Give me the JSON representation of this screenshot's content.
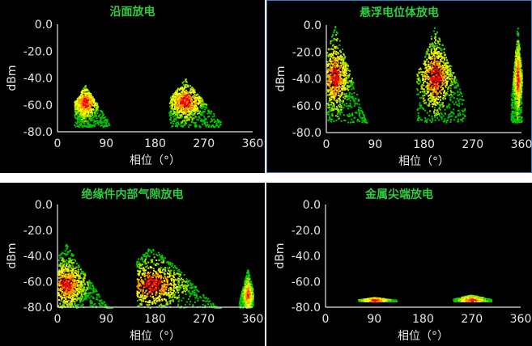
{
  "colors": {
    "background": "#000000",
    "title": "#2ecc40",
    "axis_text": "#e6e6e6",
    "low_density": "#00c800",
    "mid_low_density": "#a6e600",
    "mid_density": "#ffff00",
    "high_density": "#ff8c00",
    "peak_density": "#ff0000",
    "selected_border": "#3c78c8"
  },
  "chart_data": [
    {
      "type": "heatmap",
      "title": "沿面放电",
      "xlabel": "相位（°）",
      "ylabel": "dBm",
      "x_ticks": [
        "0",
        "90",
        "180",
        "270",
        "360"
      ],
      "y_ticks": [
        "0.0",
        "-20.0",
        "-40.0",
        "-60.0",
        "-80.0"
      ],
      "xlim": [
        0,
        360
      ],
      "ylim": [
        -80,
        0
      ],
      "grid": false,
      "clusters": [
        {
          "phase_start": 30,
          "phase_end": 95,
          "peak_phase": 50,
          "dbm_floor": -76,
          "dbm_top": -45,
          "peak_dbm": -58
        },
        {
          "phase_start": 205,
          "phase_end": 300,
          "peak_phase": 235,
          "dbm_floor": -76,
          "dbm_top": -40,
          "peak_dbm": -57
        }
      ]
    },
    {
      "type": "heatmap",
      "title": "悬浮电位体放电",
      "xlabel": "相位（°）",
      "ylabel": "dBm",
      "x_ticks": [
        "0",
        "90",
        "180",
        "270",
        "360"
      ],
      "y_ticks": [
        "0.0",
        "-20.0",
        "-40.0",
        "-60.0",
        "-80.0"
      ],
      "xlim": [
        0,
        360
      ],
      "ylim": [
        -80,
        0
      ],
      "grid": false,
      "clusters": [
        {
          "phase_start": 0,
          "phase_end": 75,
          "peak_phase": 15,
          "dbm_floor": -72,
          "dbm_top": 0,
          "peak_dbm": -38
        },
        {
          "phase_start": 165,
          "phase_end": 255,
          "peak_phase": 200,
          "dbm_floor": -72,
          "dbm_top": 0,
          "peak_dbm": -38
        },
        {
          "phase_start": 340,
          "phase_end": 360,
          "peak_phase": 352,
          "dbm_floor": -72,
          "dbm_top": 0,
          "peak_dbm": -40
        }
      ]
    },
    {
      "type": "heatmap",
      "title": "绝缘件内部气隙放电",
      "xlabel": "相位（°）",
      "ylabel": "dBm",
      "x_ticks": [
        "0",
        "90",
        "180",
        "270",
        "360"
      ],
      "y_ticks": [
        "0.0",
        "-20.0",
        "-40.0",
        "-60.0",
        "-80.0"
      ],
      "xlim": [
        0,
        360
      ],
      "ylim": [
        -80,
        0
      ],
      "grid": false,
      "clusters": [
        {
          "phase_start": 0,
          "phase_end": 100,
          "peak_phase": 15,
          "dbm_floor": -80,
          "dbm_top": -30,
          "peak_dbm": -62
        },
        {
          "phase_start": 145,
          "phase_end": 300,
          "peak_phase": 175,
          "dbm_floor": -80,
          "dbm_top": -30,
          "peak_dbm": -62
        },
        {
          "phase_start": 335,
          "phase_end": 360,
          "peak_phase": 350,
          "dbm_floor": -80,
          "dbm_top": -50,
          "peak_dbm": -70
        }
      ]
    },
    {
      "type": "heatmap",
      "title": "金属尖端放电",
      "xlabel": "相位（°）",
      "ylabel": "dBm",
      "x_ticks": [
        "0",
        "90",
        "180",
        "270",
        "360"
      ],
      "y_ticks": [
        "0.0",
        "-20.0",
        "-40.0",
        "-60.0",
        "-80.0"
      ],
      "xlim": [
        0,
        360
      ],
      "ylim": [
        -80,
        0
      ],
      "grid": false,
      "clusters": [
        {
          "phase_start": 60,
          "phase_end": 130,
          "peak_phase": 90,
          "dbm_floor": -75,
          "dbm_top": -72,
          "peak_dbm": -74
        },
        {
          "phase_start": 235,
          "phase_end": 305,
          "peak_phase": 268,
          "dbm_floor": -75,
          "dbm_top": -70,
          "peak_dbm": -74
        }
      ]
    }
  ]
}
